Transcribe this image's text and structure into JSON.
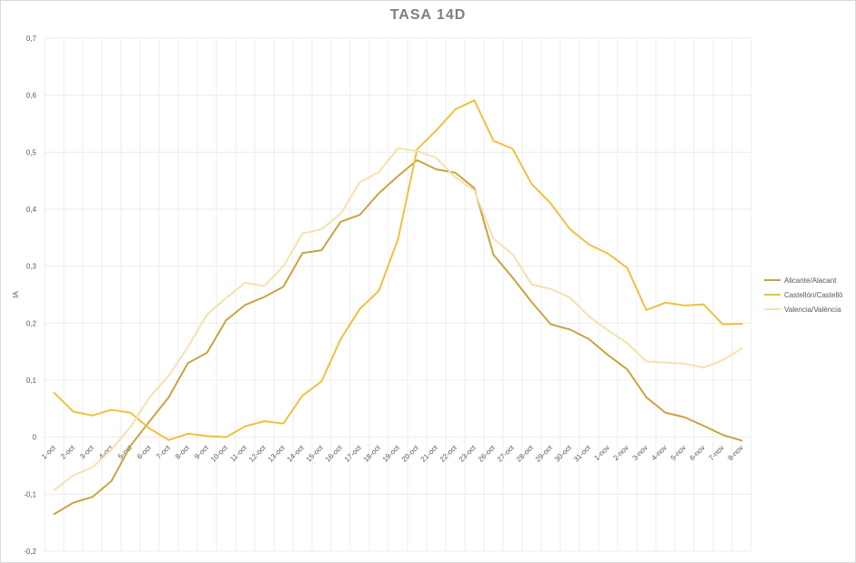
{
  "chart_data": {
    "type": "line",
    "title": "TASA 14D",
    "xlabel": "",
    "ylabel": "IA",
    "ylim": [
      -0.2,
      0.7
    ],
    "yticks": [
      "-0,2",
      "-0,1",
      "0",
      "0,1",
      "0,2",
      "0,3",
      "0,4",
      "0,5",
      "0,6",
      "0,7"
    ],
    "ytick_values": [
      -0.2,
      -0.1,
      0,
      0.1,
      0.2,
      0.3,
      0.4,
      0.5,
      0.6,
      0.7
    ],
    "grid": true,
    "legend_position": "right",
    "categories": [
      "1-oct",
      "2-oct",
      "3-oct",
      "4-oct",
      "5-oct",
      "6-oct",
      "7-oct",
      "8-oct",
      "9-oct",
      "10-oct",
      "11-oct",
      "12-oct",
      "13-oct",
      "14-oct",
      "15-oct",
      "16-oct",
      "17-oct",
      "18-oct",
      "19-oct",
      "20-oct",
      "21-oct",
      "22-oct",
      "23-oct",
      "26-oct",
      "27-oct",
      "28-oct",
      "29-oct",
      "30-oct",
      "31-oct",
      "1-nov",
      "2-nov",
      "3-nov",
      "4-nov",
      "5-nov",
      "6-nov",
      "7-nov",
      "8-nov"
    ],
    "series": [
      {
        "name": "Alicante/Alacant",
        "color": "#c9a441",
        "values": [
          -0.135,
          -0.115,
          -0.105,
          -0.077,
          -0.015,
          0.028,
          0.07,
          0.13,
          0.148,
          0.205,
          0.232,
          0.246,
          0.264,
          0.323,
          0.328,
          0.378,
          0.39,
          0.428,
          0.458,
          0.486,
          0.47,
          0.464,
          0.437,
          0.32,
          0.28,
          0.237,
          0.198,
          0.189,
          0.172,
          0.144,
          0.119,
          0.07,
          0.043,
          0.035,
          0.02,
          0.004,
          -0.006
        ]
      },
      {
        "name": "Castellón/Castelló",
        "color": "#f0c040",
        "values": [
          0.078,
          0.045,
          0.038,
          0.048,
          0.043,
          0.015,
          -0.005,
          0.006,
          0.002,
          0.0,
          0.019,
          0.028,
          0.024,
          0.073,
          0.098,
          0.172,
          0.225,
          0.257,
          0.347,
          0.505,
          0.538,
          0.575,
          0.591,
          0.52,
          0.506,
          0.444,
          0.41,
          0.365,
          0.338,
          0.322,
          0.297,
          0.223,
          0.236,
          0.231,
          0.233,
          0.198,
          0.199
        ]
      },
      {
        "name": "Valencia/València",
        "color": "#f6e0b0",
        "values": [
          -0.093,
          -0.067,
          -0.053,
          -0.022,
          0.018,
          0.07,
          0.108,
          0.158,
          0.215,
          0.244,
          0.271,
          0.265,
          0.3,
          0.357,
          0.365,
          0.392,
          0.447,
          0.465,
          0.507,
          0.502,
          0.49,
          0.456,
          0.433,
          0.348,
          0.321,
          0.268,
          0.26,
          0.245,
          0.212,
          0.187,
          0.165,
          0.133,
          0.131,
          0.129,
          0.122,
          0.135,
          0.156
        ]
      }
    ]
  }
}
